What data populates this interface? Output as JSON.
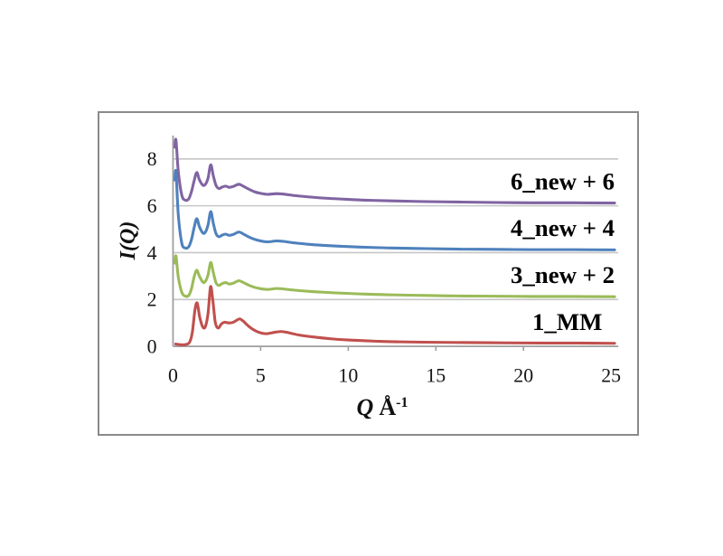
{
  "figure": {
    "border_color": "#8a8a8a",
    "background": "#ffffff"
  },
  "chart_data": {
    "type": "line",
    "title": "",
    "xlabel": {
      "variable": "Q",
      "unit": "Å",
      "exponent": "-1"
    },
    "ylabel": "I(Q)",
    "xlim": [
      0,
      25
    ],
    "ylim": [
      0,
      9
    ],
    "x_ticks": [
      0,
      5,
      10,
      15,
      20,
      25
    ],
    "y_ticks": [
      0,
      2,
      4,
      6,
      8
    ],
    "grid": "horizontal-only",
    "gridline_color": "#c6c6c6",
    "axis_color": "#9e9e9e",
    "tick_label_color": "#151515",
    "series_label_color": "#000000",
    "legend_position": "inline-right-of-each-curve",
    "series": [
      {
        "name": "1_MM",
        "color": "#C0504D",
        "offset": 0,
        "label_right_q": 24.5,
        "points": [
          [
            0.15,
            0.1
          ],
          [
            0.45,
            0.07
          ],
          [
            0.75,
            0.08
          ],
          [
            0.95,
            0.18
          ],
          [
            1.1,
            0.6
          ],
          [
            1.25,
            1.55
          ],
          [
            1.38,
            1.85
          ],
          [
            1.52,
            1.25
          ],
          [
            1.7,
            0.82
          ],
          [
            1.85,
            0.85
          ],
          [
            2.0,
            1.4
          ],
          [
            2.14,
            2.55
          ],
          [
            2.28,
            1.9
          ],
          [
            2.42,
            1.0
          ],
          [
            2.58,
            0.78
          ],
          [
            2.75,
            0.95
          ],
          [
            2.95,
            1.03
          ],
          [
            3.15,
            1.0
          ],
          [
            3.4,
            1.02
          ],
          [
            3.6,
            1.1
          ],
          [
            3.8,
            1.17
          ],
          [
            4.0,
            1.08
          ],
          [
            4.25,
            0.9
          ],
          [
            4.55,
            0.73
          ],
          [
            4.9,
            0.6
          ],
          [
            5.3,
            0.54
          ],
          [
            5.8,
            0.6
          ],
          [
            6.2,
            0.63
          ],
          [
            6.6,
            0.58
          ],
          [
            7.2,
            0.48
          ],
          [
            8.0,
            0.4
          ],
          [
            9.0,
            0.32
          ],
          [
            10.0,
            0.27
          ],
          [
            11.5,
            0.22
          ],
          [
            13.0,
            0.19
          ],
          [
            15.0,
            0.17
          ],
          [
            17.0,
            0.16
          ],
          [
            19.0,
            0.15
          ],
          [
            21.0,
            0.14
          ],
          [
            23.0,
            0.14
          ],
          [
            25.2,
            0.13
          ]
        ]
      },
      {
        "name": "3_new + 2",
        "color": "#9BBB59",
        "offset": 2,
        "label_right_q": 25.2,
        "points": [
          [
            0.1,
            3.55
          ],
          [
            0.17,
            3.85
          ],
          [
            0.3,
            2.95
          ],
          [
            0.5,
            2.3
          ],
          [
            0.7,
            2.14
          ],
          [
            0.9,
            2.18
          ],
          [
            1.05,
            2.45
          ],
          [
            1.2,
            2.95
          ],
          [
            1.35,
            3.25
          ],
          [
            1.5,
            3.0
          ],
          [
            1.7,
            2.74
          ],
          [
            1.85,
            2.78
          ],
          [
            2.0,
            3.05
          ],
          [
            2.15,
            3.58
          ],
          [
            2.3,
            3.15
          ],
          [
            2.45,
            2.72
          ],
          [
            2.62,
            2.6
          ],
          [
            2.8,
            2.68
          ],
          [
            3.0,
            2.72
          ],
          [
            3.2,
            2.66
          ],
          [
            3.45,
            2.7
          ],
          [
            3.75,
            2.8
          ],
          [
            4.0,
            2.73
          ],
          [
            4.3,
            2.62
          ],
          [
            4.65,
            2.52
          ],
          [
            5.0,
            2.46
          ],
          [
            5.4,
            2.43
          ],
          [
            5.9,
            2.47
          ],
          [
            6.3,
            2.45
          ],
          [
            6.9,
            2.4
          ],
          [
            7.7,
            2.35
          ],
          [
            8.6,
            2.31
          ],
          [
            9.6,
            2.27
          ],
          [
            11.0,
            2.23
          ],
          [
            12.5,
            2.2
          ],
          [
            14.5,
            2.17
          ],
          [
            16.5,
            2.15
          ],
          [
            18.5,
            2.14
          ],
          [
            20.5,
            2.13
          ],
          [
            22.5,
            2.13
          ],
          [
            25.2,
            2.12
          ]
        ]
      },
      {
        "name": "4_new + 4",
        "color": "#4F81BD",
        "offset": 4,
        "label_right_q": 25.2,
        "points": [
          [
            0.1,
            7.1
          ],
          [
            0.17,
            7.45
          ],
          [
            0.3,
            5.6
          ],
          [
            0.5,
            4.4
          ],
          [
            0.7,
            4.2
          ],
          [
            0.9,
            4.26
          ],
          [
            1.05,
            4.55
          ],
          [
            1.2,
            5.05
          ],
          [
            1.35,
            5.45
          ],
          [
            1.5,
            5.12
          ],
          [
            1.7,
            4.84
          ],
          [
            1.85,
            4.88
          ],
          [
            2.0,
            5.18
          ],
          [
            2.15,
            5.75
          ],
          [
            2.3,
            5.25
          ],
          [
            2.45,
            4.82
          ],
          [
            2.62,
            4.68
          ],
          [
            2.8,
            4.75
          ],
          [
            3.0,
            4.79
          ],
          [
            3.2,
            4.74
          ],
          [
            3.45,
            4.78
          ],
          [
            3.75,
            4.88
          ],
          [
            4.0,
            4.8
          ],
          [
            4.3,
            4.68
          ],
          [
            4.65,
            4.57
          ],
          [
            5.0,
            4.5
          ],
          [
            5.4,
            4.46
          ],
          [
            5.9,
            4.5
          ],
          [
            6.3,
            4.48
          ],
          [
            6.9,
            4.42
          ],
          [
            7.7,
            4.36
          ],
          [
            8.6,
            4.31
          ],
          [
            9.6,
            4.27
          ],
          [
            11.0,
            4.23
          ],
          [
            12.5,
            4.2
          ],
          [
            14.5,
            4.17
          ],
          [
            16.5,
            4.15
          ],
          [
            18.5,
            4.14
          ],
          [
            20.5,
            4.13
          ],
          [
            22.5,
            4.13
          ],
          [
            25.2,
            4.12
          ]
        ]
      },
      {
        "name": "6_new + 6",
        "color": "#8064A2",
        "offset": 6,
        "label_right_q": 25.2,
        "points": [
          [
            0.1,
            8.5
          ],
          [
            0.17,
            8.8
          ],
          [
            0.3,
            7.45
          ],
          [
            0.5,
            6.45
          ],
          [
            0.7,
            6.24
          ],
          [
            0.9,
            6.3
          ],
          [
            1.05,
            6.6
          ],
          [
            1.2,
            7.05
          ],
          [
            1.35,
            7.42
          ],
          [
            1.5,
            7.12
          ],
          [
            1.7,
            6.88
          ],
          [
            1.85,
            6.92
          ],
          [
            2.0,
            7.18
          ],
          [
            2.15,
            7.75
          ],
          [
            2.3,
            7.28
          ],
          [
            2.45,
            6.88
          ],
          [
            2.62,
            6.74
          ],
          [
            2.8,
            6.8
          ],
          [
            3.0,
            6.84
          ],
          [
            3.2,
            6.79
          ],
          [
            3.45,
            6.83
          ],
          [
            3.75,
            6.92
          ],
          [
            4.0,
            6.84
          ],
          [
            4.3,
            6.72
          ],
          [
            4.65,
            6.6
          ],
          [
            5.0,
            6.53
          ],
          [
            5.4,
            6.49
          ],
          [
            5.9,
            6.52
          ],
          [
            6.3,
            6.5
          ],
          [
            6.9,
            6.44
          ],
          [
            7.7,
            6.38
          ],
          [
            8.6,
            6.33
          ],
          [
            9.6,
            6.29
          ],
          [
            11.0,
            6.24
          ],
          [
            12.5,
            6.21
          ],
          [
            14.5,
            6.18
          ],
          [
            16.5,
            6.16
          ],
          [
            18.5,
            6.14
          ],
          [
            20.5,
            6.13
          ],
          [
            22.5,
            6.13
          ],
          [
            25.2,
            6.12
          ]
        ]
      }
    ]
  }
}
